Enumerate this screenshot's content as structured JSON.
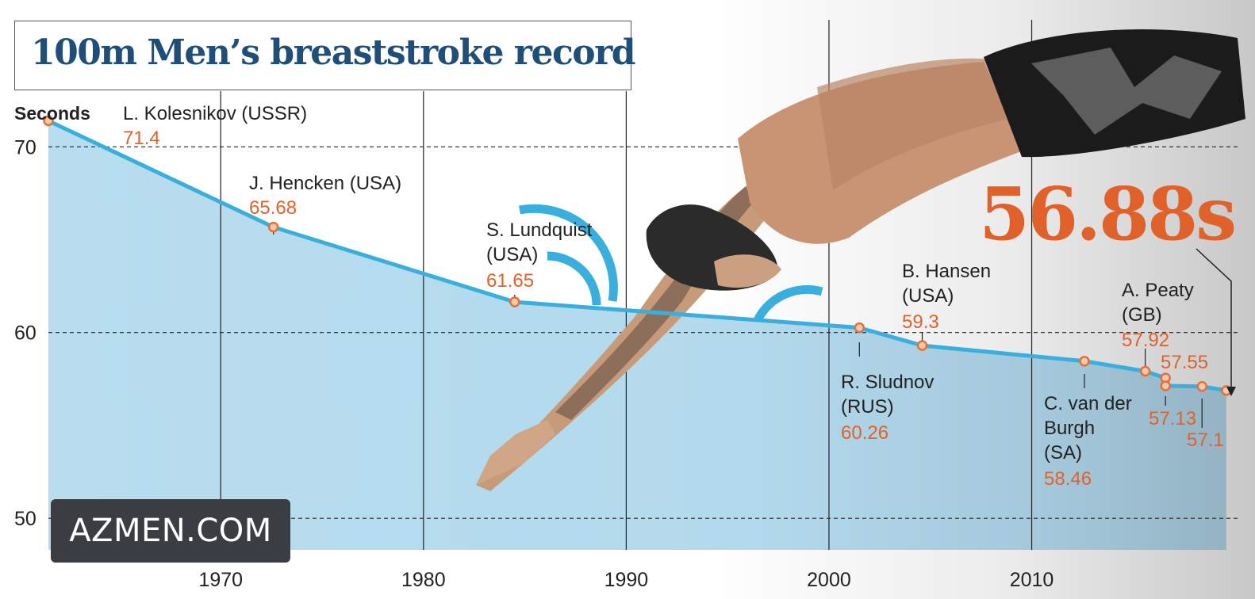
{
  "chart_data": {
    "type": "line",
    "title": "100m Men’s breaststroke record",
    "ylabel": "Seconds",
    "xlim": [
      1961.5,
      2019.8
    ],
    "ylim": [
      48.3,
      73
    ],
    "x_ticks": [
      "1970",
      "1980",
      "1990",
      "2000",
      "2010"
    ],
    "y_ticks": [
      "50",
      "60",
      "70"
    ],
    "grid": "dashed horizontal lines at y ticks; solid vertical lines at decades",
    "line_color": "#3aaedc",
    "fill_color": "#b3dcef",
    "point_color": "#e07040",
    "label_color": "#e0622a",
    "highlight": "56.88s",
    "points": [
      {
        "x": 1961.5,
        "y": 71.4,
        "holder": "L. Kolesnikov (USSR)",
        "value_label": "71.4"
      },
      {
        "x": 1972.6,
        "y": 65.68,
        "holder": "J. Hencken (USA)",
        "value_label": "65.68"
      },
      {
        "x": 1984.5,
        "y": 61.65,
        "holder": "S. Lundquist (USA)",
        "value_label": "61.65"
      },
      {
        "x": 2001.5,
        "y": 60.26,
        "holder": "R. Sludnov (RUS)",
        "value_label": "60.26"
      },
      {
        "x": 2004.6,
        "y": 59.3,
        "holder": "B. Hansen (USA)",
        "value_label": "59.3"
      },
      {
        "x": 2012.6,
        "y": 58.46,
        "holder": "C. van der Burgh (SA)",
        "value_label": "58.46"
      },
      {
        "x": 2015.6,
        "y": 57.92,
        "holder": "A. Peaty (GB)",
        "value_label": "57.92"
      },
      {
        "x": 2016.6,
        "y": 57.55,
        "holder": "",
        "value_label": "57.55"
      },
      {
        "x": 2016.6,
        "y": 57.13,
        "holder": "",
        "value_label": "57.13"
      },
      {
        "x": 2018.4,
        "y": 57.1,
        "holder": "",
        "value_label": "57.1"
      },
      {
        "x": 2019.6,
        "y": 56.88,
        "holder": "",
        "value_label": ""
      }
    ]
  },
  "watermark": "AZMEN.COM"
}
